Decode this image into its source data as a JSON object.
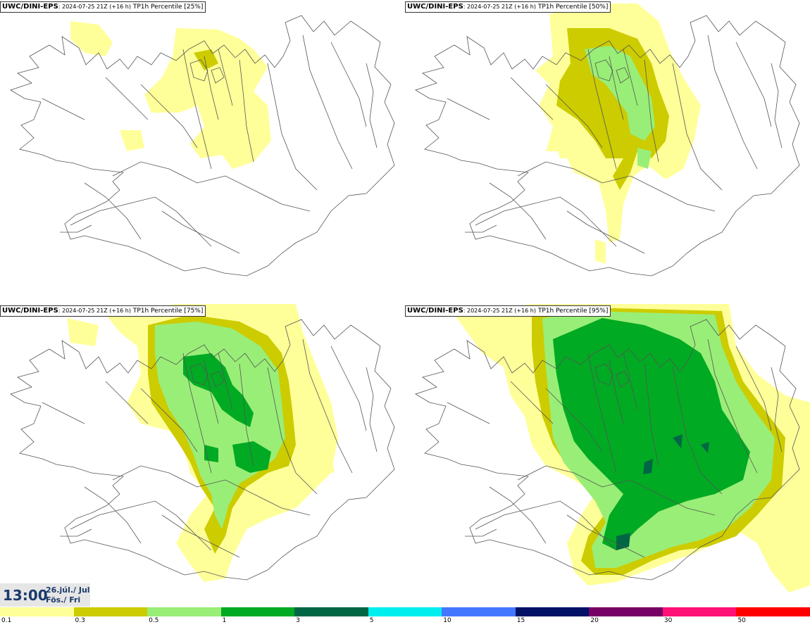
{
  "panels": [
    {
      "model": "UWC/DINI-EPS",
      "run": ": 2024-07-25 21Z (+16 h)",
      "title": "TP1h Percentile [25%]"
    },
    {
      "model": "UWC/DINI-EPS",
      "run": ": 2024-07-25 21Z (+16 h)",
      "title": "TP1h Percentile [50%]"
    },
    {
      "model": "UWC/DINI-EPS",
      "run": ": 2024-07-25 21Z (+16 h)",
      "title": "TP1h Percentile [75%]"
    },
    {
      "model": "UWC/DINI-EPS",
      "run": ": 2024-07-25 21Z (+16 h)",
      "title": "TP1h Percentile [95%]"
    }
  ],
  "valid_time": {
    "hour": "13:00",
    "date_line1": "26.júl./ Jul",
    "date_line2": "Fös./ Fri"
  },
  "legend": {
    "ticks": [
      "0.1",
      "0.3",
      "0.5",
      "1",
      "3",
      "5",
      "10",
      "15",
      "20",
      "30",
      "50"
    ],
    "colors": [
      "#ffff99",
      "#cccc00",
      "#99ee77",
      "#00aa22",
      "#006644",
      "#00eeee",
      "#4477ff",
      "#001166",
      "#770066",
      "#ff1177",
      "#ff0000"
    ]
  }
}
